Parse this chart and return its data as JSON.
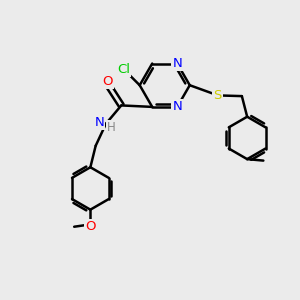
{
  "bg_color": "#ebebeb",
  "bond_color": "#000000",
  "bond_width": 1.8,
  "atom_colors": {
    "N": "#0000ff",
    "O": "#ff0000",
    "S": "#cccc00",
    "Cl": "#00cc00",
    "H": "#888888",
    "C": "#000000"
  },
  "figsize": [
    3.0,
    3.0
  ],
  "dpi": 100
}
